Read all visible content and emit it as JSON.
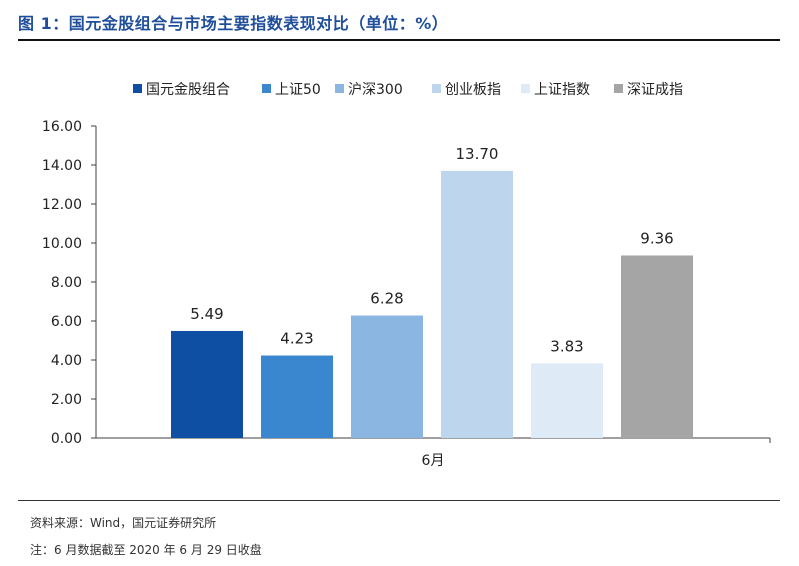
{
  "figure": {
    "title": "图 1：国元金股组合与市场主要指数表现对比（单位：%）",
    "source": "资料来源：Wind，国元证券研究所",
    "note": "注：6 月数据截至 2020 年 6 月 29 日收盘"
  },
  "chart_data": {
    "type": "bar",
    "categories": [
      "6月"
    ],
    "series": [
      {
        "name": "国元金股组合",
        "values": [
          5.49
        ],
        "color": "#0e4fa3"
      },
      {
        "name": "上证50",
        "values": [
          4.23
        ],
        "color": "#3a87cf"
      },
      {
        "name": "沪深300",
        "values": [
          6.28
        ],
        "color": "#8ab6e1"
      },
      {
        "name": "创业板指",
        "values": [
          13.7
        ],
        "color": "#bdd6ee"
      },
      {
        "name": "上证指数",
        "values": [
          3.83
        ],
        "color": "#deebf7"
      },
      {
        "name": "深证成指",
        "values": [
          9.36
        ],
        "color": "#a5a5a5"
      }
    ],
    "data_labels": [
      "5.49",
      "4.23",
      "6.28",
      "13.70",
      "3.83",
      "9.36"
    ],
    "ylim": [
      0,
      16
    ],
    "yticks": [
      "0.00",
      "2.00",
      "4.00",
      "6.00",
      "8.00",
      "10.00",
      "12.00",
      "14.00",
      "16.00"
    ],
    "legend_position": "top",
    "grid": false
  }
}
